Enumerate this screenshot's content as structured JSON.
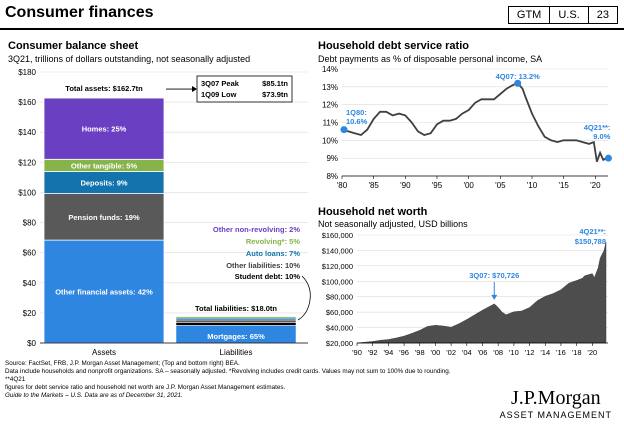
{
  "header": {
    "title": "Consumer finances",
    "tags": [
      "GTM",
      "U.S.",
      "23"
    ]
  },
  "balance": {
    "title": "Consumer balance sheet",
    "subtitle": "3Q21, trillions of dollars outstanding, not seasonally adjusted",
    "peak_label": "3Q07 Peak",
    "peak_value": "$85.1tn",
    "low_label": "1Q09 Low",
    "low_value": "$73.9tn"
  },
  "debt_service": {
    "title": "Household debt service ratio",
    "subtitle": "Debt payments as % of disposable personal income, SA"
  },
  "net_worth": {
    "title": "Household net worth",
    "subtitle": "Not seasonally adjusted, USD billions"
  },
  "chart_data": [
    {
      "type": "bar",
      "name": "Consumer balance sheet",
      "ylim": [
        0,
        180
      ],
      "yticks": [
        "$0",
        "$20",
        "$40",
        "$60",
        "$80",
        "$100",
        "$120",
        "$140",
        "$160",
        "$180"
      ],
      "categories": [
        "Assets",
        "Liabilities"
      ],
      "total_assets_label": "Total assets: $162.7tn",
      "total_assets": 162.7,
      "assets": [
        {
          "label": "Other financial assets: 42%",
          "pct": 42,
          "color": "#2f86e0"
        },
        {
          "label": "Pension funds: 19%",
          "pct": 19,
          "color": "#595959"
        },
        {
          "label": "Deposits: 9%",
          "pct": 9,
          "color": "#1273ad"
        },
        {
          "label": "Other tangible: 5%",
          "pct": 5,
          "color": "#86b34a"
        },
        {
          "label": "Homes: 25%",
          "pct": 25,
          "color": "#6a3fc2"
        }
      ],
      "total_liabilities_label": "Total liabilities: $18.0tn",
      "total_liabilities": 18.0,
      "liabilities": [
        {
          "label": "Mortgages: 65%",
          "pct": 65,
          "color": "#2f86e0"
        },
        {
          "label": "Student debt: 10%",
          "pct": 10,
          "color": "#000000"
        },
        {
          "label": "Other liabilities: 10%",
          "pct": 10,
          "color": "#595959"
        },
        {
          "label": "Auto loans: 7%",
          "pct": 7,
          "color": "#1273ad"
        },
        {
          "label": "Revolving*: 5%",
          "pct": 5,
          "color": "#86b34a"
        },
        {
          "label": "Other non-revolving: 2%",
          "pct": 2,
          "color": "#6a3fc2"
        }
      ]
    },
    {
      "type": "line",
      "name": "Household debt service ratio",
      "xlim": [
        1980,
        2022
      ],
      "ylim": [
        8,
        14
      ],
      "yticks": [
        "8%",
        "9%",
        "10%",
        "11%",
        "12%",
        "13%",
        "14%"
      ],
      "xticks": [
        "'80",
        "'85",
        "'90",
        "'95",
        "'00",
        "'05",
        "'10",
        "'15",
        "'20"
      ],
      "x": [
        1980,
        1981,
        1982,
        1983,
        1984,
        1985,
        1986,
        1987,
        1988,
        1989,
        1990,
        1991,
        1992,
        1993,
        1994,
        1995,
        1996,
        1997,
        1998,
        1999,
        2000,
        2001,
        2002,
        2003,
        2004,
        2005,
        2006,
        2007,
        2007.75,
        2008.5,
        2009,
        2010,
        2011,
        2012,
        2013,
        2014,
        2015,
        2016,
        2017,
        2018,
        2019,
        2019.75,
        2020.25,
        2020.75,
        2021.25,
        2021.75
      ],
      "y": [
        10.6,
        10.5,
        10.4,
        10.3,
        10.6,
        11.2,
        11.6,
        11.6,
        11.4,
        11.5,
        11.4,
        11.0,
        10.5,
        10.3,
        10.4,
        10.9,
        11.1,
        11.1,
        11.2,
        11.5,
        11.7,
        12.1,
        12.3,
        12.3,
        12.3,
        12.6,
        12.9,
        13.1,
        13.2,
        12.9,
        12.4,
        11.5,
        10.8,
        10.2,
        10.0,
        9.9,
        10.0,
        10.0,
        10.0,
        9.9,
        9.8,
        9.9,
        8.8,
        9.3,
        8.9,
        9.0
      ],
      "annotations": [
        {
          "label": "1Q80:",
          "value": "10.6%",
          "x": 1980,
          "y": 10.6
        },
        {
          "label": "4Q07:",
          "value": "13.2%",
          "x": 2007.75,
          "y": 13.2
        },
        {
          "label": "4Q21**:",
          "value": "9.0%",
          "x": 2021.75,
          "y": 9.0
        }
      ]
    },
    {
      "type": "area",
      "name": "Household net worth",
      "xlim": [
        1990,
        2022
      ],
      "ylim": [
        20000,
        160000
      ],
      "yticks": [
        "$20,000",
        "$40,000",
        "$60,000",
        "$80,000",
        "$100,000",
        "$120,000",
        "$140,000",
        "$160,000"
      ],
      "xticks": [
        "'90",
        "'92",
        "'94",
        "'96",
        "'98",
        "'00",
        "'02",
        "'04",
        "'06",
        "'08",
        "'10",
        "'12",
        "'14",
        "'16",
        "'18",
        "'20"
      ],
      "x": [
        1990,
        1991,
        1992,
        1993,
        1994,
        1995,
        1996,
        1997,
        1998,
        1999,
        2000,
        2001,
        2002,
        2003,
        2004,
        2005,
        2006,
        2007,
        2007.5,
        2008,
        2008.5,
        2009,
        2010,
        2011,
        2012,
        2013,
        2014,
        2015,
        2016,
        2017,
        2018,
        2018.75,
        2019,
        2020,
        2020.25,
        2020.75,
        2021,
        2021.5,
        2021.75
      ],
      "y": [
        20000,
        21000,
        22000,
        23500,
        24500,
        26500,
        29000,
        32500,
        36500,
        41500,
        43000,
        42000,
        40500,
        45000,
        50500,
        56500,
        62500,
        68000,
        70726,
        66000,
        60000,
        56500,
        60500,
        61500,
        66000,
        75000,
        80500,
        84000,
        89000,
        97500,
        101000,
        104000,
        107000,
        110000,
        104500,
        117500,
        130000,
        140000,
        150788
      ],
      "annotations": [
        {
          "label": "3Q07: $70,726",
          "x": 2007.5,
          "y": 70726
        },
        {
          "label": "4Q21**:",
          "value": "$150,788",
          "x": 2021.75,
          "y": 150788
        }
      ]
    }
  ],
  "footer": {
    "source": "Source: FactSet, FRB, J.P. Morgan Asset Management; (Top and bottom right) BEA.",
    "note1": "Data include households and nonprofit organizations. SA – seasonally adjusted. *Revolving includes credit cards. Values may not sum to 100% due to rounding. **4Q21",
    "note2": "figures for debt service ratio and household net worth are J.P. Morgan Asset Management estimates.",
    "guide": "Guide to the Markets – U.S. Data are as of December 31, 2021."
  },
  "logo": {
    "line1": "J.P.Morgan",
    "line2": "ASSET MANAGEMENT"
  }
}
